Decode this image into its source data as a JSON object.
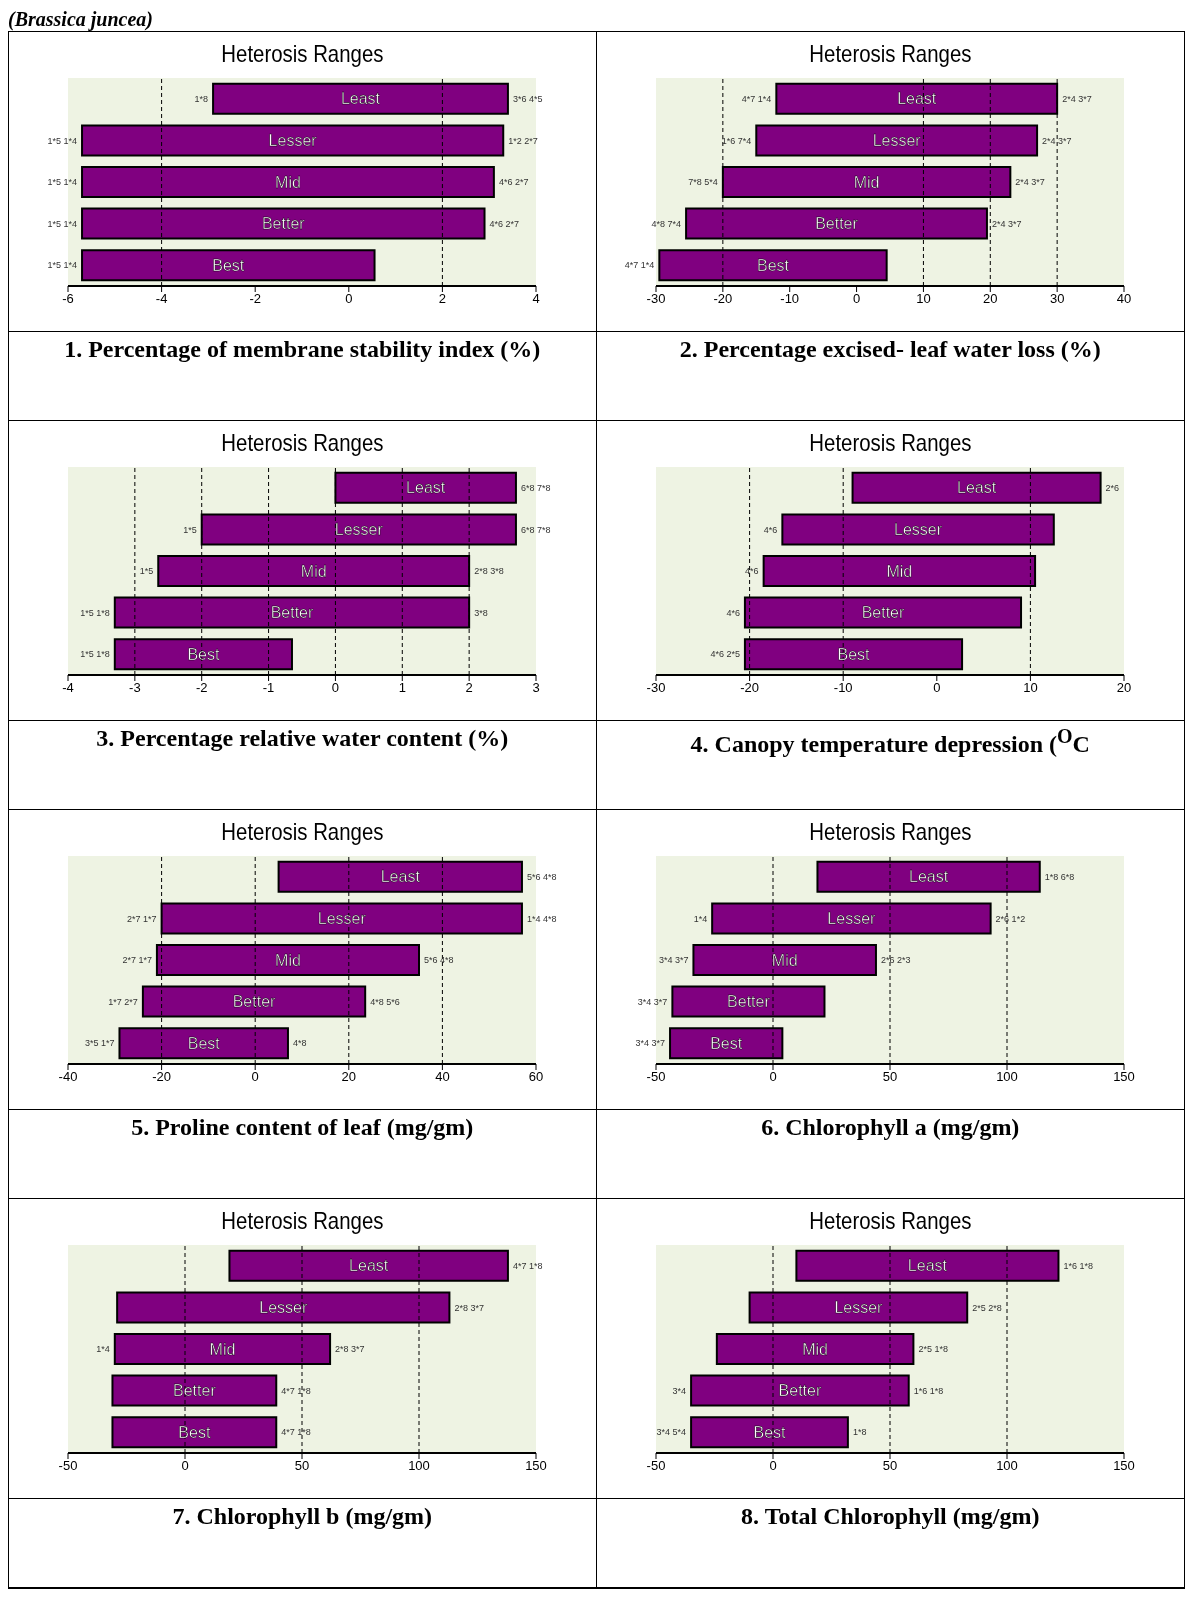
{
  "chart_data": [
    {
      "type": "bar",
      "orientation": "horizontal",
      "title": "Heterosis Ranges",
      "subtitle": "(Brassica juncea)",
      "xlabel": "1. Percentage of membrane stability index (%)",
      "categories": [
        "Least",
        "Lesser",
        "Mid",
        "Better",
        "Best"
      ],
      "base": [
        -2.9,
        -5.7,
        -5.7,
        -5.7,
        -5.7
      ],
      "values": [
        6.3,
        9.0,
        8.8,
        8.6,
        6.25
      ],
      "color": "#800080",
      "xlim": [
        -6,
        4
      ],
      "xticks": [
        -6,
        -4,
        -2,
        0,
        2,
        4
      ],
      "ref_lines": [
        {
          "axis": "x",
          "value": -4,
          "line_style": "dashed"
        },
        {
          "axis": "x",
          "value": 2,
          "line_style": "dashed"
        }
      ],
      "annotations": [
        {
          "text": "1*8",
          "x": -2.9,
          "y": "Least"
        },
        {
          "text": "3*6 4*5",
          "x": 3.4,
          "y": "Least"
        },
        {
          "text": "1*5 1*4",
          "x": -5.7,
          "y": "Lesser"
        },
        {
          "text": "1*2 2*7",
          "x": 3.3,
          "y": "Lesser"
        },
        {
          "text": "1*5 1*4",
          "x": -5.7,
          "y": "Mid"
        },
        {
          "text": "4*6 2*7",
          "x": 3.1,
          "y": "Mid"
        },
        {
          "text": "1*5 1*4",
          "x": -5.7,
          "y": "Better"
        },
        {
          "text": "4*6 2*7",
          "x": 2.9,
          "y": "Better"
        },
        {
          "text": "1*5 1*4",
          "x": -5.7,
          "y": "Best"
        }
      ]
    },
    {
      "type": "bar",
      "orientation": "horizontal",
      "title": "Heterosis Ranges",
      "xlabel": "2.  Percentage excised- leaf water loss (%)",
      "categories": [
        "Least",
        "Lesser",
        "Mid",
        "Better",
        "Best"
      ],
      "base": [
        -12,
        -15,
        -20,
        -25.5,
        -29.5
      ],
      "values": [
        42,
        42,
        43,
        45,
        34
      ],
      "color": "#800080",
      "xlim": [
        -30,
        40
      ],
      "xticks": [
        -30,
        -20,
        -10,
        0,
        10,
        20,
        30,
        40
      ],
      "ref_lines": [
        {
          "axis": "x",
          "value": -20,
          "line_style": "dashed"
        },
        {
          "axis": "x",
          "value": 10,
          "line_style": "dashed"
        },
        {
          "axis": "x",
          "value": 20,
          "line_style": "dashed"
        },
        {
          "axis": "x",
          "value": 30,
          "line_style": "dashed"
        }
      ],
      "annotations": [
        {
          "text": "4*7 1*4",
          "x": -12,
          "y": "Least"
        },
        {
          "text": "2*4 3*7",
          "x": 30,
          "y": "Least"
        },
        {
          "text": "1*6 7*4",
          "x": -15,
          "y": "Lesser"
        },
        {
          "text": "2*4 3*7",
          "x": 27,
          "y": "Lesser"
        },
        {
          "text": "7*8 5*4",
          "x": -20,
          "y": "Mid"
        },
        {
          "text": "2*4 3*7",
          "x": 23,
          "y": "Mid"
        },
        {
          "text": "4*8 7*4",
          "x": -25.5,
          "y": "Better"
        },
        {
          "text": "2*4 3*7",
          "x": 19.5,
          "y": "Better"
        },
        {
          "text": "4*7 1*4",
          "x": -29.5,
          "y": "Best"
        }
      ]
    },
    {
      "type": "bar",
      "orientation": "horizontal",
      "title": "Heterosis Ranges",
      "xlabel": "3. Percentage relative water content (%)",
      "categories": [
        "Least",
        "Lesser",
        "Mid",
        "Better",
        "Best"
      ],
      "base": [
        0,
        -2,
        -2.65,
        -3.3,
        -3.3
      ],
      "values": [
        2.7,
        4.7,
        4.65,
        5.3,
        2.65
      ],
      "color": "#800080",
      "xlim": [
        -4,
        3
      ],
      "xticks": [
        -4,
        -3,
        -2,
        -1,
        0,
        1,
        2,
        3
      ],
      "ref_lines": [
        {
          "axis": "x",
          "value": -3,
          "line_style": "dashed"
        },
        {
          "axis": "x",
          "value": -2,
          "line_style": "dashed"
        },
        {
          "axis": "x",
          "value": -1,
          "line_style": "dashed"
        },
        {
          "axis": "x",
          "value": 0,
          "line_style": "dashed"
        },
        {
          "axis": "x",
          "value": 1,
          "line_style": "dashed"
        },
        {
          "axis": "x",
          "value": 2,
          "line_style": "dashed"
        }
      ],
      "annotations": [
        {
          "text": "6*8 7*8",
          "x": 2.7,
          "y": "Least"
        },
        {
          "text": "1*5",
          "x": -2,
          "y": "Lesser"
        },
        {
          "text": "6*8 7*8",
          "x": 2.7,
          "y": "Lesser"
        },
        {
          "text": "1*5",
          "x": -2.65,
          "y": "Mid"
        },
        {
          "text": "2*8 3*8",
          "x": 2,
          "y": "Mid"
        },
        {
          "text": "1*5 1*8",
          "x": -3.3,
          "y": "Better"
        },
        {
          "text": "3*8",
          "x": 2,
          "y": "Better"
        },
        {
          "text": "1*5 1*8",
          "x": -3.3,
          "y": "Best"
        }
      ]
    },
    {
      "type": "bar",
      "orientation": "horizontal",
      "title": "Heterosis Ranges",
      "xlabel": "4.  Canopy temperature depression ($^{O}$C",
      "categories": [
        "Least",
        "Lesser",
        "Mid",
        "Better",
        "Best"
      ],
      "base": [
        -9,
        -16.5,
        -18.5,
        -20.5,
        -20.5
      ],
      "values": [
        26.5,
        29,
        29,
        29.5,
        23.2
      ],
      "color": "#800080",
      "xlim": [
        -30,
        20
      ],
      "xticks": [
        -30,
        -20,
        -10,
        0,
        10,
        20
      ],
      "ref_lines": [
        {
          "axis": "x",
          "value": -20,
          "line_style": "dashed"
        },
        {
          "axis": "x",
          "value": -10,
          "line_style": "dashed"
        },
        {
          "axis": "x",
          "value": 10,
          "line_style": "dashed"
        }
      ],
      "annotations": [
        {
          "text": "2*6",
          "x": 17.5,
          "y": "Least"
        },
        {
          "text": "4*6",
          "x": -16.5,
          "y": "Lesser"
        },
        {
          "text": "4*6",
          "x": -18.5,
          "y": "Mid"
        },
        {
          "text": "4*6",
          "x": -20.5,
          "y": "Better"
        },
        {
          "text": "4*6 2*5",
          "x": -20.5,
          "y": "Best"
        }
      ]
    },
    {
      "type": "bar",
      "orientation": "horizontal",
      "title": "Heterosis Ranges",
      "xlabel": "5.  Proline content of leaf (mg/gm)",
      "categories": [
        "Least",
        "Lesser",
        "Mid",
        "Better",
        "Best"
      ],
      "base": [
        5,
        -20,
        -21,
        -24,
        -29
      ],
      "values": [
        52,
        77,
        56,
        47.5,
        36
      ],
      "color": "#800080",
      "xlim": [
        -40,
        60
      ],
      "xticks": [
        -40,
        -20,
        0,
        20,
        40,
        60
      ],
      "ref_lines": [
        {
          "axis": "x",
          "value": -20,
          "line_style": "dashed"
        },
        {
          "axis": "x",
          "value": 0,
          "line_style": "dashed"
        },
        {
          "axis": "x",
          "value": 20,
          "line_style": "dashed"
        },
        {
          "axis": "x",
          "value": 40,
          "line_style": "dashed"
        }
      ],
      "annotations": [
        {
          "text": "5*6 4*8",
          "x": 57,
          "y": "Least"
        },
        {
          "text": "2*7 1*7",
          "x": -20,
          "y": "Lesser"
        },
        {
          "text": "1*4 4*8",
          "x": 57,
          "y": "Lesser"
        },
        {
          "text": "2*7 1*7",
          "x": -21,
          "y": "Mid"
        },
        {
          "text": "5*6 4*8",
          "x": 35,
          "y": "Mid"
        },
        {
          "text": "1*7 2*7",
          "x": -24,
          "y": "Better"
        },
        {
          "text": "4*8 5*6",
          "x": 23.5,
          "y": "Better"
        },
        {
          "text": "3*5 1*7",
          "x": -29,
          "y": "Best"
        },
        {
          "text": "4*8",
          "x": 7,
          "y": "Best"
        }
      ]
    },
    {
      "type": "bar",
      "orientation": "horizontal",
      "title": "Heterosis Ranges",
      "xlabel": "6.  Chlorophyll a (mg/gm)",
      "categories": [
        "Least",
        "Lesser",
        "Mid",
        "Better",
        "Best"
      ],
      "base": [
        19,
        -26,
        -34,
        -43,
        -44
      ],
      "values": [
        95,
        119,
        78,
        65,
        48
      ],
      "color": "#800080",
      "xlim": [
        -50,
        150
      ],
      "xticks": [
        -50,
        0,
        50,
        100,
        150
      ],
      "ref_lines": [
        {
          "axis": "x",
          "value": 0,
          "line_style": "dashed"
        },
        {
          "axis": "x",
          "value": 50,
          "line_style": "dashed"
        },
        {
          "axis": "x",
          "value": 100,
          "line_style": "dashed"
        }
      ],
      "annotations": [
        {
          "text": "1*8 6*8",
          "x": 114,
          "y": "Least"
        },
        {
          "text": "1*4",
          "x": -26,
          "y": "Lesser"
        },
        {
          "text": "2*6 1*2",
          "x": 93,
          "y": "Lesser"
        },
        {
          "text": "3*4 3*7",
          "x": -34,
          "y": "Mid"
        },
        {
          "text": "2*6 2*3",
          "x": 44,
          "y": "Mid"
        },
        {
          "text": "3*4 3*7",
          "x": -43,
          "y": "Better"
        },
        {
          "text": "3*4 3*7",
          "x": -44,
          "y": "Best"
        }
      ]
    },
    {
      "type": "bar",
      "orientation": "horizontal",
      "title": "Heterosis Ranges",
      "xlabel": "7.  Chlorophyll b (mg/gm)",
      "categories": [
        "Least",
        "Lesser",
        "Mid",
        "Better",
        "Best"
      ],
      "base": [
        19,
        -29,
        -30,
        -31,
        -31
      ],
      "values": [
        119,
        142,
        92,
        70,
        70
      ],
      "color": "#800080",
      "xlim": [
        -50,
        150
      ],
      "xticks": [
        -50,
        0,
        50,
        100,
        150
      ],
      "ref_lines": [
        {
          "axis": "x",
          "value": 0,
          "line_style": "dashed"
        },
        {
          "axis": "x",
          "value": 50,
          "line_style": "dashed"
        },
        {
          "axis": "x",
          "value": 100,
          "line_style": "dashed"
        }
      ],
      "annotations": [
        {
          "text": "4*7 1*8",
          "x": 138,
          "y": "Least"
        },
        {
          "text": "2*8 3*7",
          "x": 113,
          "y": "Lesser"
        },
        {
          "text": "1*4",
          "x": -30,
          "y": "Mid"
        },
        {
          "text": "2*8 3*7",
          "x": 62,
          "y": "Mid"
        },
        {
          "text": "4*7 1*8",
          "x": 39,
          "y": "Better"
        },
        {
          "text": "4*7 1*8",
          "x": 39,
          "y": "Best"
        }
      ]
    },
    {
      "type": "bar",
      "orientation": "horizontal",
      "title": "Heterosis Ranges",
      "xlabel": "8.  Total Chlorophyll (mg/gm)",
      "categories": [
        "Least",
        "Lesser",
        "Mid",
        "Better",
        "Best"
      ],
      "base": [
        10,
        -10,
        -24,
        -35,
        -35
      ],
      "values": [
        112,
        93,
        84,
        93,
        67
      ],
      "color": "#800080",
      "xlim": [
        -50,
        150
      ],
      "xticks": [
        -50,
        0,
        50,
        100,
        150
      ],
      "ref_lines": [
        {
          "axis": "x",
          "value": 0,
          "line_style": "dashed"
        },
        {
          "axis": "x",
          "value": 50,
          "line_style": "dashed"
        },
        {
          "axis": "x",
          "value": 100,
          "line_style": "dashed"
        }
      ],
      "annotations": [
        {
          "text": "1*6 1*8",
          "x": 122,
          "y": "Least"
        },
        {
          "text": "2*5 2*8",
          "x": 83,
          "y": "Lesser"
        },
        {
          "text": "2*5 1*8",
          "x": 60,
          "y": "Mid"
        },
        {
          "text": "3*4",
          "x": -35,
          "y": "Better"
        },
        {
          "text": "1*6 1*8",
          "x": 58,
          "y": "Better"
        },
        {
          "text": "3*4 5*4",
          "x": -35,
          "y": "Best"
        },
        {
          "text": "1*8",
          "x": 32,
          "y": "Best"
        }
      ]
    }
  ]
}
